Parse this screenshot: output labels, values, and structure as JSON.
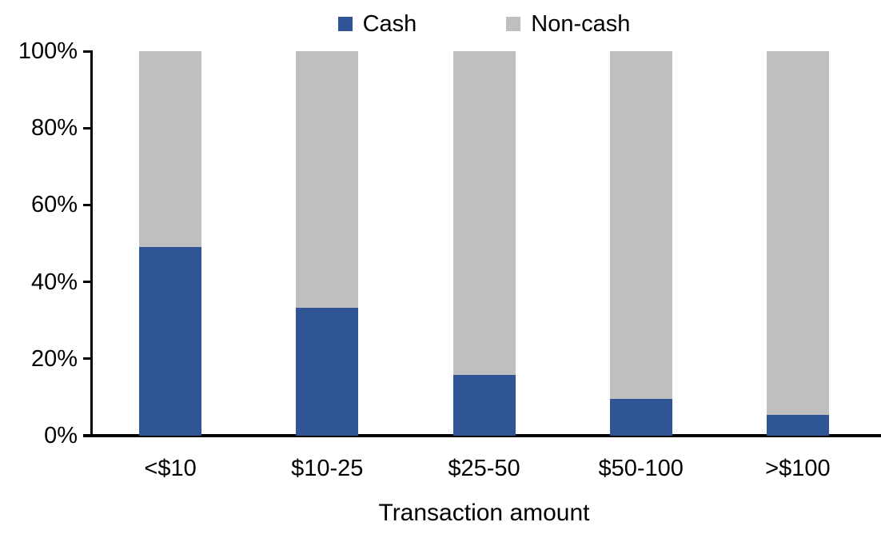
{
  "chart_data": {
    "type": "bar",
    "stacked": true,
    "stack_mode": "percent",
    "title": "",
    "xlabel": "Transaction amount",
    "ylabel": "",
    "categories": [
      "<$10",
      "$10-25",
      "$25-50",
      "$50-100",
      ">$100"
    ],
    "series": [
      {
        "name": "Cash",
        "color": "#2F5597",
        "values": [
          49,
          33.3,
          15.7,
          9.6,
          5.4
        ]
      },
      {
        "name": "Non-cash",
        "color": "#BFBFBF",
        "values": [
          51,
          66.7,
          84.3,
          90.4,
          94.6
        ]
      }
    ],
    "ylim": [
      0,
      100
    ],
    "ytick_step": 20,
    "ytick_labels": [
      "0%",
      "20%",
      "40%",
      "60%",
      "80%",
      "100%"
    ],
    "legend_position": "top",
    "grid": false,
    "axis_color": "#000000",
    "text_color": "#000000"
  }
}
